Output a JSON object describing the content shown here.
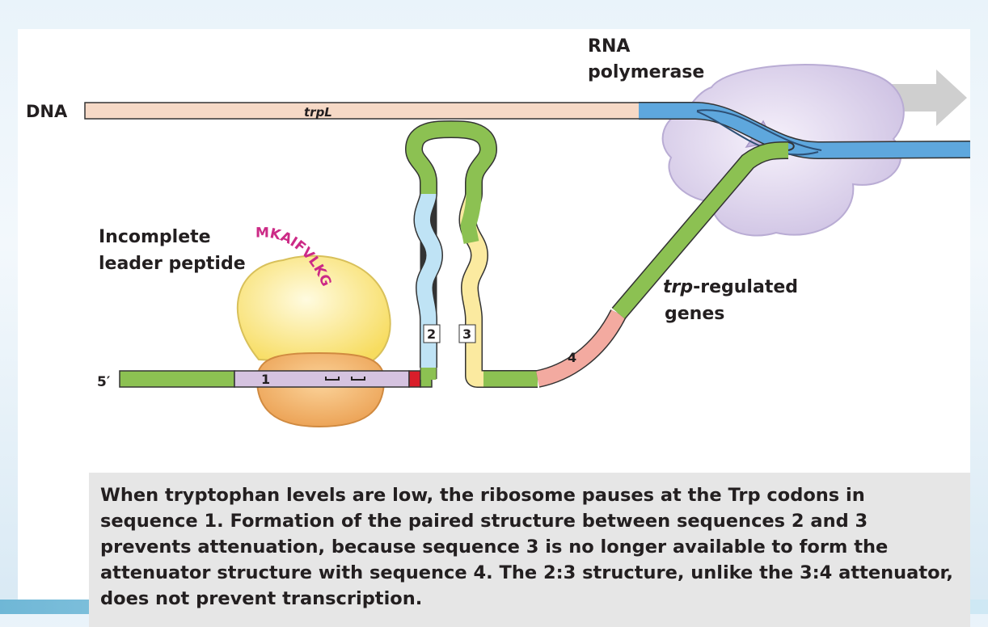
{
  "labels": {
    "dna": "DNA",
    "trpl": "trpL",
    "rna_polymerase_line1": "RNA",
    "rna_polymerase_line2": "polymerase",
    "incomplete_line1": "Incomplete",
    "incomplete_line2": "leader peptide",
    "peptide_sequence": "MKAIFVLKG",
    "five_prime": "5′",
    "regulated_italic": "trp",
    "regulated_rest": "-regulated",
    "genes": "genes",
    "seq1": "1",
    "seq2": "2",
    "seq3": "3",
    "seq4": "4"
  },
  "caption": "When tryptophan levels are low, the ribosome pauses at the Trp codons in sequence 1. Formation of the paired structure between sequences 2 and 3 prevents attenuation, because sequence 3 is no longer available to form the attenuator structure with sequence 4. The 2:3 structure, unlike the 3:4 attenuator, does not prevent transcription.",
  "colors": {
    "dna_leader": "#f6d9c6",
    "dna_blue": "#5ea7dd",
    "rna_green": "#8cc152",
    "seq1_lavender": "#d5c3e0",
    "seq2_light_blue": "#bfe3f5",
    "seq3_light_yellow": "#fbeaa0",
    "seq4_pink": "#f3aaa0",
    "stop_red": "#d91e2a",
    "ribosome_large": "#fbe88a",
    "ribosome_small": "#f3b36a",
    "polymerase": "#ddd3ec",
    "peptide_magenta": "#cc2a86",
    "caption_bg": "#e6e6e6",
    "arrow_gray": "#cfcfcf"
  },
  "icons": {
    "direction_arrow": "arrow-right-icon",
    "trp_codons": "codon-bracket-icon"
  }
}
